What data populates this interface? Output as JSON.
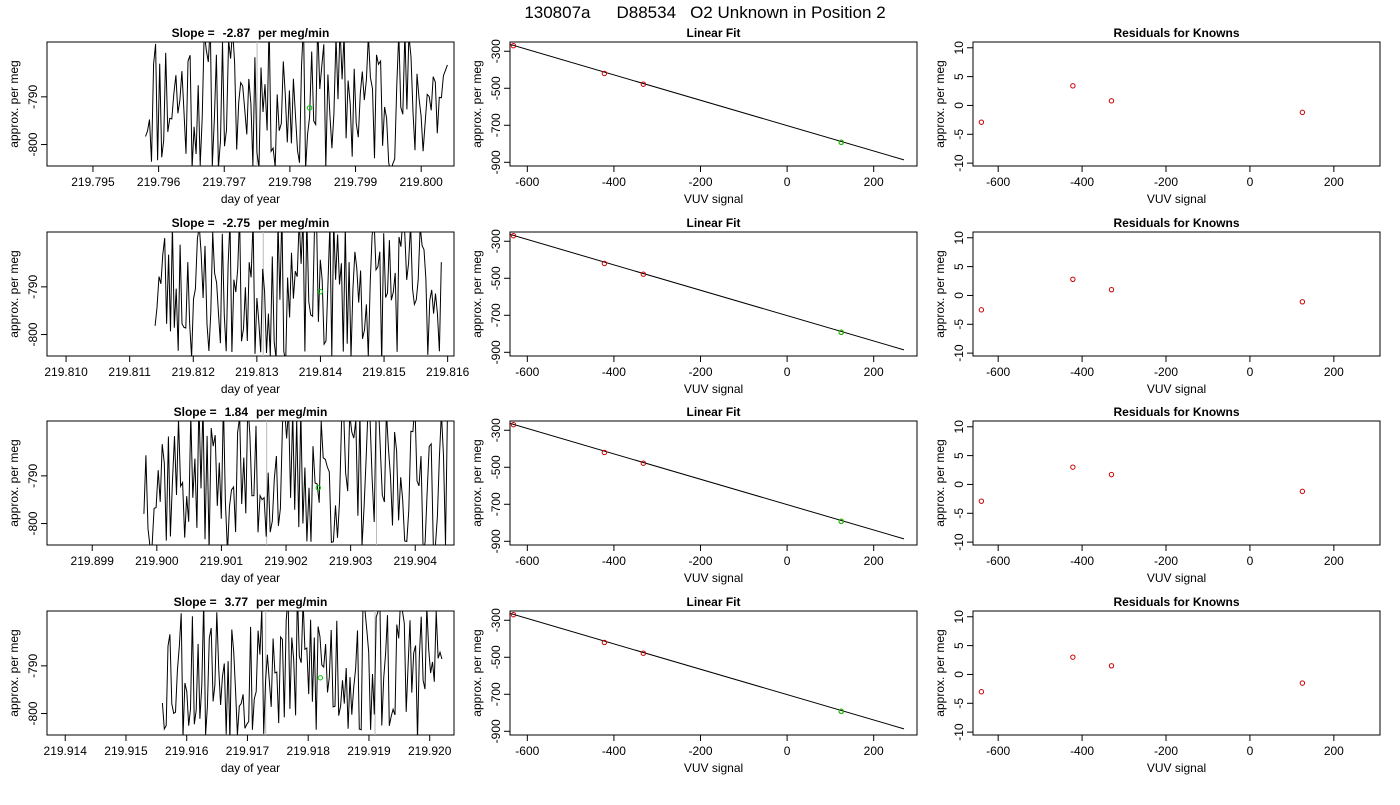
{
  "figure": {
    "title_id": "130807a",
    "title_tank": "D88534",
    "title_desc": "O2 Unknown in Position  2"
  },
  "colors": {
    "line": "#000000",
    "known_point": "#cc0000",
    "unknown_point": "#00cc00",
    "marker_line": "#bbbbbb"
  },
  "rows": [
    {
      "timeseries": {
        "title_prefix": "Slope =",
        "slope": "-2.87",
        "slope_unit": "per meg/min",
        "xlabel": "day of year",
        "ylabel": "approx. per meg",
        "xlim": [
          219.7943,
          219.8005
        ],
        "ylim": [
          -804.5,
          -778.5
        ],
        "xticks": [
          "219.795",
          "219.796",
          "219.797",
          "219.798",
          "219.799",
          "219.800"
        ],
        "yticks": [
          "-790",
          "-800"
        ],
        "trace_start": 219.7958,
        "trace_end": 219.8004,
        "trace_seed": 11,
        "marker_lines": [
          219.7975
        ],
        "unknown_point": {
          "x": 219.7983,
          "y": -792.3
        }
      },
      "fit": {
        "title": "Linear Fit",
        "xlabel": "VUV signal",
        "ylabel": "approx. per meg",
        "xlim": [
          -640,
          300
        ],
        "ylim": [
          -920,
          -250
        ],
        "xticks": [
          "-600",
          "-400",
          "-200",
          "0",
          "200"
        ],
        "yticks": [
          "-300",
          "-500",
          "-700",
          "-900"
        ],
        "line_range": [
          -640,
          270
        ],
        "fit_line": [
          [
            -640,
            -263
          ],
          [
            270,
            -887
          ]
        ],
        "knowns": [
          [
            -632,
            -270
          ],
          [
            -422,
            -420
          ],
          [
            -332,
            -478
          ],
          [
            125,
            -792
          ]
        ],
        "unknown": [
          125,
          -792
        ]
      },
      "resid": {
        "title": "Residuals for Knowns",
        "xlabel": "VUV signal",
        "ylabel": "approx. per meg",
        "xlim": [
          -660,
          310
        ],
        "ylim": [
          -10.5,
          11
        ],
        "xticks": [
          "-600",
          "-400",
          "-200",
          "0",
          "200"
        ],
        "yticks": [
          "10",
          "5",
          "0",
          "-5",
          "-10"
        ],
        "points": [
          [
            -640,
            -2.9
          ],
          [
            -422,
            3.4
          ],
          [
            -330,
            0.8
          ],
          [
            125,
            -1.2
          ]
        ]
      }
    },
    {
      "timeseries": {
        "title_prefix": "Slope =",
        "slope": "-2.75",
        "slope_unit": "per meg/min",
        "xlabel": "day of year",
        "ylabel": "approx. per meg",
        "xlim": [
          219.8097,
          219.8161
        ],
        "ylim": [
          -804.5,
          -778.5
        ],
        "xticks": [
          "219.810",
          "219.811",
          "219.812",
          "219.813",
          "219.814",
          "219.815",
          "219.816"
        ],
        "yticks": [
          "-790",
          "-800"
        ],
        "trace_start": 219.8114,
        "trace_end": 219.8159,
        "trace_seed": 23,
        "marker_lines": [
          219.8131
        ],
        "unknown_point": {
          "x": 219.814,
          "y": -791.0
        }
      },
      "fit": {
        "title": "Linear Fit",
        "xlabel": "VUV signal",
        "ylabel": "approx. per meg",
        "xlim": [
          -640,
          300
        ],
        "ylim": [
          -920,
          -250
        ],
        "xticks": [
          "-600",
          "-400",
          "-200",
          "0",
          "200"
        ],
        "yticks": [
          "-300",
          "-500",
          "-700",
          "-900"
        ],
        "line_range": [
          -640,
          270
        ],
        "fit_line": [
          [
            -640,
            -263
          ],
          [
            270,
            -887
          ]
        ],
        "knowns": [
          [
            -632,
            -270
          ],
          [
            -422,
            -420
          ],
          [
            -332,
            -478
          ],
          [
            125,
            -792
          ]
        ],
        "unknown": [
          125,
          -792
        ]
      },
      "resid": {
        "title": "Residuals for Knowns",
        "xlabel": "VUV signal",
        "ylabel": "approx. per meg",
        "xlim": [
          -660,
          310
        ],
        "ylim": [
          -10.5,
          11
        ],
        "xticks": [
          "-600",
          "-400",
          "-200",
          "0",
          "200"
        ],
        "yticks": [
          "10",
          "5",
          "0",
          "-5",
          "-10"
        ],
        "points": [
          [
            -640,
            -2.5
          ],
          [
            -422,
            2.8
          ],
          [
            -330,
            1.0
          ],
          [
            125,
            -1.1
          ]
        ]
      }
    },
    {
      "timeseries": {
        "title_prefix": "Slope =",
        "slope": "1.84",
        "slope_unit": "per meg/min",
        "xlabel": "day of year",
        "ylabel": "approx. per meg",
        "xlim": [
          219.8983,
          219.9046
        ],
        "ylim": [
          -804.5,
          -778.5
        ],
        "xticks": [
          "219.899",
          "219.900",
          "219.901",
          "219.902",
          "219.903",
          "219.904"
        ],
        "yticks": [
          "-790",
          "-800"
        ],
        "trace_start": 219.8998,
        "trace_end": 219.9045,
        "trace_seed": 37,
        "marker_lines": [
          219.9017,
          219.9034
        ],
        "unknown_point": {
          "x": 219.9025,
          "y": -792.5
        }
      },
      "fit": {
        "title": "Linear Fit",
        "xlabel": "VUV signal",
        "ylabel": "approx. per meg",
        "xlim": [
          -640,
          300
        ],
        "ylim": [
          -920,
          -250
        ],
        "xticks": [
          "-600",
          "-400",
          "-200",
          "0",
          "200"
        ],
        "yticks": [
          "-300",
          "-500",
          "-700",
          "-900"
        ],
        "line_range": [
          -640,
          270
        ],
        "fit_line": [
          [
            -640,
            -263
          ],
          [
            270,
            -887
          ]
        ],
        "knowns": [
          [
            -632,
            -270
          ],
          [
            -422,
            -420
          ],
          [
            -332,
            -478
          ],
          [
            125,
            -792
          ]
        ],
        "unknown": [
          125,
          -792
        ]
      },
      "resid": {
        "title": "Residuals for Knowns",
        "xlabel": "VUV signal",
        "ylabel": "approx. per meg",
        "xlim": [
          -660,
          310
        ],
        "ylim": [
          -10.5,
          11
        ],
        "xticks": [
          "-600",
          "-400",
          "-200",
          "0",
          "200"
        ],
        "yticks": [
          "10",
          "5",
          "0",
          "-5",
          "-10"
        ],
        "points": [
          [
            -640,
            -2.9
          ],
          [
            -422,
            3.0
          ],
          [
            -330,
            1.7
          ],
          [
            125,
            -1.2
          ]
        ]
      }
    },
    {
      "timeseries": {
        "title_prefix": "Slope =",
        "slope": "3.77",
        "slope_unit": "per meg/min",
        "xlabel": "day of year",
        "ylabel": "approx. per meg",
        "xlim": [
          219.9137,
          219.9204
        ],
        "ylim": [
          -804.5,
          -778.5
        ],
        "xticks": [
          "219.914",
          "219.915",
          "219.916",
          "219.917",
          "219.918",
          "219.919",
          "219.920"
        ],
        "yticks": [
          "-790",
          "-800"
        ],
        "trace_start": 219.9156,
        "trace_end": 219.9202,
        "trace_seed": 53,
        "marker_lines": [
          219.9173,
          219.9191
        ],
        "unknown_point": {
          "x": 219.9182,
          "y": -792.5
        }
      },
      "fit": {
        "title": "Linear Fit",
        "xlabel": "VUV signal",
        "ylabel": "approx. per meg",
        "xlim": [
          -640,
          300
        ],
        "ylim": [
          -920,
          -250
        ],
        "xticks": [
          "-600",
          "-400",
          "-200",
          "0",
          "200"
        ],
        "yticks": [
          "-300",
          "-500",
          "-700",
          "-900"
        ],
        "line_range": [
          -640,
          270
        ],
        "fit_line": [
          [
            -640,
            -263
          ],
          [
            270,
            -887
          ]
        ],
        "knowns": [
          [
            -632,
            -270
          ],
          [
            -422,
            -420
          ],
          [
            -332,
            -478
          ],
          [
            125,
            -792
          ]
        ],
        "unknown": [
          125,
          -792
        ]
      },
      "resid": {
        "title": "Residuals for Knowns",
        "xlabel": "VUV signal",
        "ylabel": "approx. per meg",
        "xlim": [
          -660,
          310
        ],
        "ylim": [
          -10.5,
          11
        ],
        "xticks": [
          "-600",
          "-400",
          "-200",
          "0",
          "200"
        ],
        "yticks": [
          "10",
          "5",
          "0",
          "-5",
          "-10"
        ],
        "points": [
          [
            -640,
            -3.0
          ],
          [
            -422,
            3.0
          ],
          [
            -330,
            1.5
          ],
          [
            125,
            -1.5
          ]
        ]
      }
    }
  ],
  "chart_data": [
    {
      "type": "line",
      "title": "Slope =  -2.87  per meg/min",
      "xlabel": "day of year",
      "ylabel": "approx. per meg",
      "xlim": [
        219.7943,
        219.8005
      ],
      "ylim": [
        -804.5,
        -778.5
      ],
      "x_ticks": [
        "219.795",
        "219.796",
        "219.797",
        "219.798",
        "219.799",
        "219.800"
      ],
      "y_ticks": [
        "-790",
        "-800"
      ]
    },
    {
      "type": "scatter",
      "title": "Linear Fit",
      "xlabel": "VUV signal",
      "ylabel": "approx. per meg",
      "x": [
        -632,
        -422,
        -332,
        125
      ],
      "y": [
        -270,
        -420,
        -478,
        -792
      ],
      "xlim": [
        -640,
        300
      ],
      "ylim": [
        -920,
        -250
      ]
    },
    {
      "type": "scatter",
      "title": "Residuals for Knowns",
      "xlabel": "VUV signal",
      "ylabel": "approx. per meg",
      "x": [
        -640,
        -422,
        -330,
        125
      ],
      "y": [
        -2.9,
        3.4,
        0.8,
        -1.2
      ],
      "xlim": [
        -660,
        310
      ],
      "ylim": [
        -10.5,
        11
      ]
    },
    {
      "type": "line",
      "title": "Slope =  -2.75  per meg/min",
      "xlabel": "day of year",
      "ylabel": "approx. per meg",
      "xlim": [
        219.8097,
        219.8161
      ],
      "ylim": [
        -804.5,
        -778.5
      ],
      "x_ticks": [
        "219.810",
        "219.811",
        "219.812",
        "219.813",
        "219.814",
        "219.815",
        "219.816"
      ],
      "y_ticks": [
        "-790",
        "-800"
      ]
    },
    {
      "type": "scatter",
      "title": "Linear Fit",
      "xlabel": "VUV signal",
      "ylabel": "approx. per meg",
      "x": [
        -632,
        -422,
        -332,
        125
      ],
      "y": [
        -270,
        -420,
        -478,
        -792
      ],
      "xlim": [
        -640,
        300
      ],
      "ylim": [
        -920,
        -250
      ]
    },
    {
      "type": "scatter",
      "title": "Residuals for Knowns",
      "xlabel": "VUV signal",
      "ylabel": "approx. per meg",
      "x": [
        -640,
        -422,
        -330,
        125
      ],
      "y": [
        -2.5,
        2.8,
        1.0,
        -1.1
      ],
      "xlim": [
        -660,
        310
      ],
      "ylim": [
        -10.5,
        11
      ]
    },
    {
      "type": "line",
      "title": "Slope =  1.84  per meg/min",
      "xlabel": "day of year",
      "ylabel": "approx. per meg",
      "xlim": [
        219.8983,
        219.9046
      ],
      "ylim": [
        -804.5,
        -778.5
      ],
      "x_ticks": [
        "219.899",
        "219.900",
        "219.901",
        "219.902",
        "219.903",
        "219.904"
      ],
      "y_ticks": [
        "-790",
        "-800"
      ]
    },
    {
      "type": "scatter",
      "title": "Linear Fit",
      "xlabel": "VUV signal",
      "ylabel": "approx. per meg",
      "x": [
        -632,
        -422,
        -332,
        125
      ],
      "y": [
        -270,
        -420,
        -478,
        -792
      ],
      "xlim": [
        -640,
        300
      ],
      "ylim": [
        -920,
        -250
      ]
    },
    {
      "type": "scatter",
      "title": "Residuals for Knowns",
      "xlabel": "VUV signal",
      "ylabel": "approx. per meg",
      "x": [
        -640,
        -422,
        -330,
        125
      ],
      "y": [
        -2.9,
        3.0,
        1.7,
        -1.2
      ],
      "xlim": [
        -660,
        310
      ],
      "ylim": [
        -10.5,
        11
      ]
    },
    {
      "type": "line",
      "title": "Slope =  3.77  per meg/min",
      "xlabel": "day of year",
      "ylabel": "approx. per meg",
      "xlim": [
        219.9137,
        219.9204
      ],
      "ylim": [
        -804.5,
        -778.5
      ],
      "x_ticks": [
        "219.914",
        "219.915",
        "219.916",
        "219.917",
        "219.918",
        "219.919",
        "219.920"
      ],
      "y_ticks": [
        "-790",
        "-800"
      ]
    },
    {
      "type": "scatter",
      "title": "Linear Fit",
      "xlabel": "VUV signal",
      "ylabel": "approx. per meg",
      "x": [
        -632,
        -422,
        -332,
        125
      ],
      "y": [
        -270,
        -420,
        -478,
        -792
      ],
      "xlim": [
        -640,
        300
      ],
      "ylim": [
        -920,
        -250
      ]
    },
    {
      "type": "scatter",
      "title": "Residuals for Knowns",
      "xlabel": "VUV signal",
      "ylabel": "approx. per meg",
      "x": [
        -640,
        -422,
        -330,
        125
      ],
      "y": [
        -3.0,
        3.0,
        1.5,
        -1.5
      ],
      "xlim": [
        -660,
        310
      ],
      "ylim": [
        -10.5,
        11
      ]
    }
  ]
}
